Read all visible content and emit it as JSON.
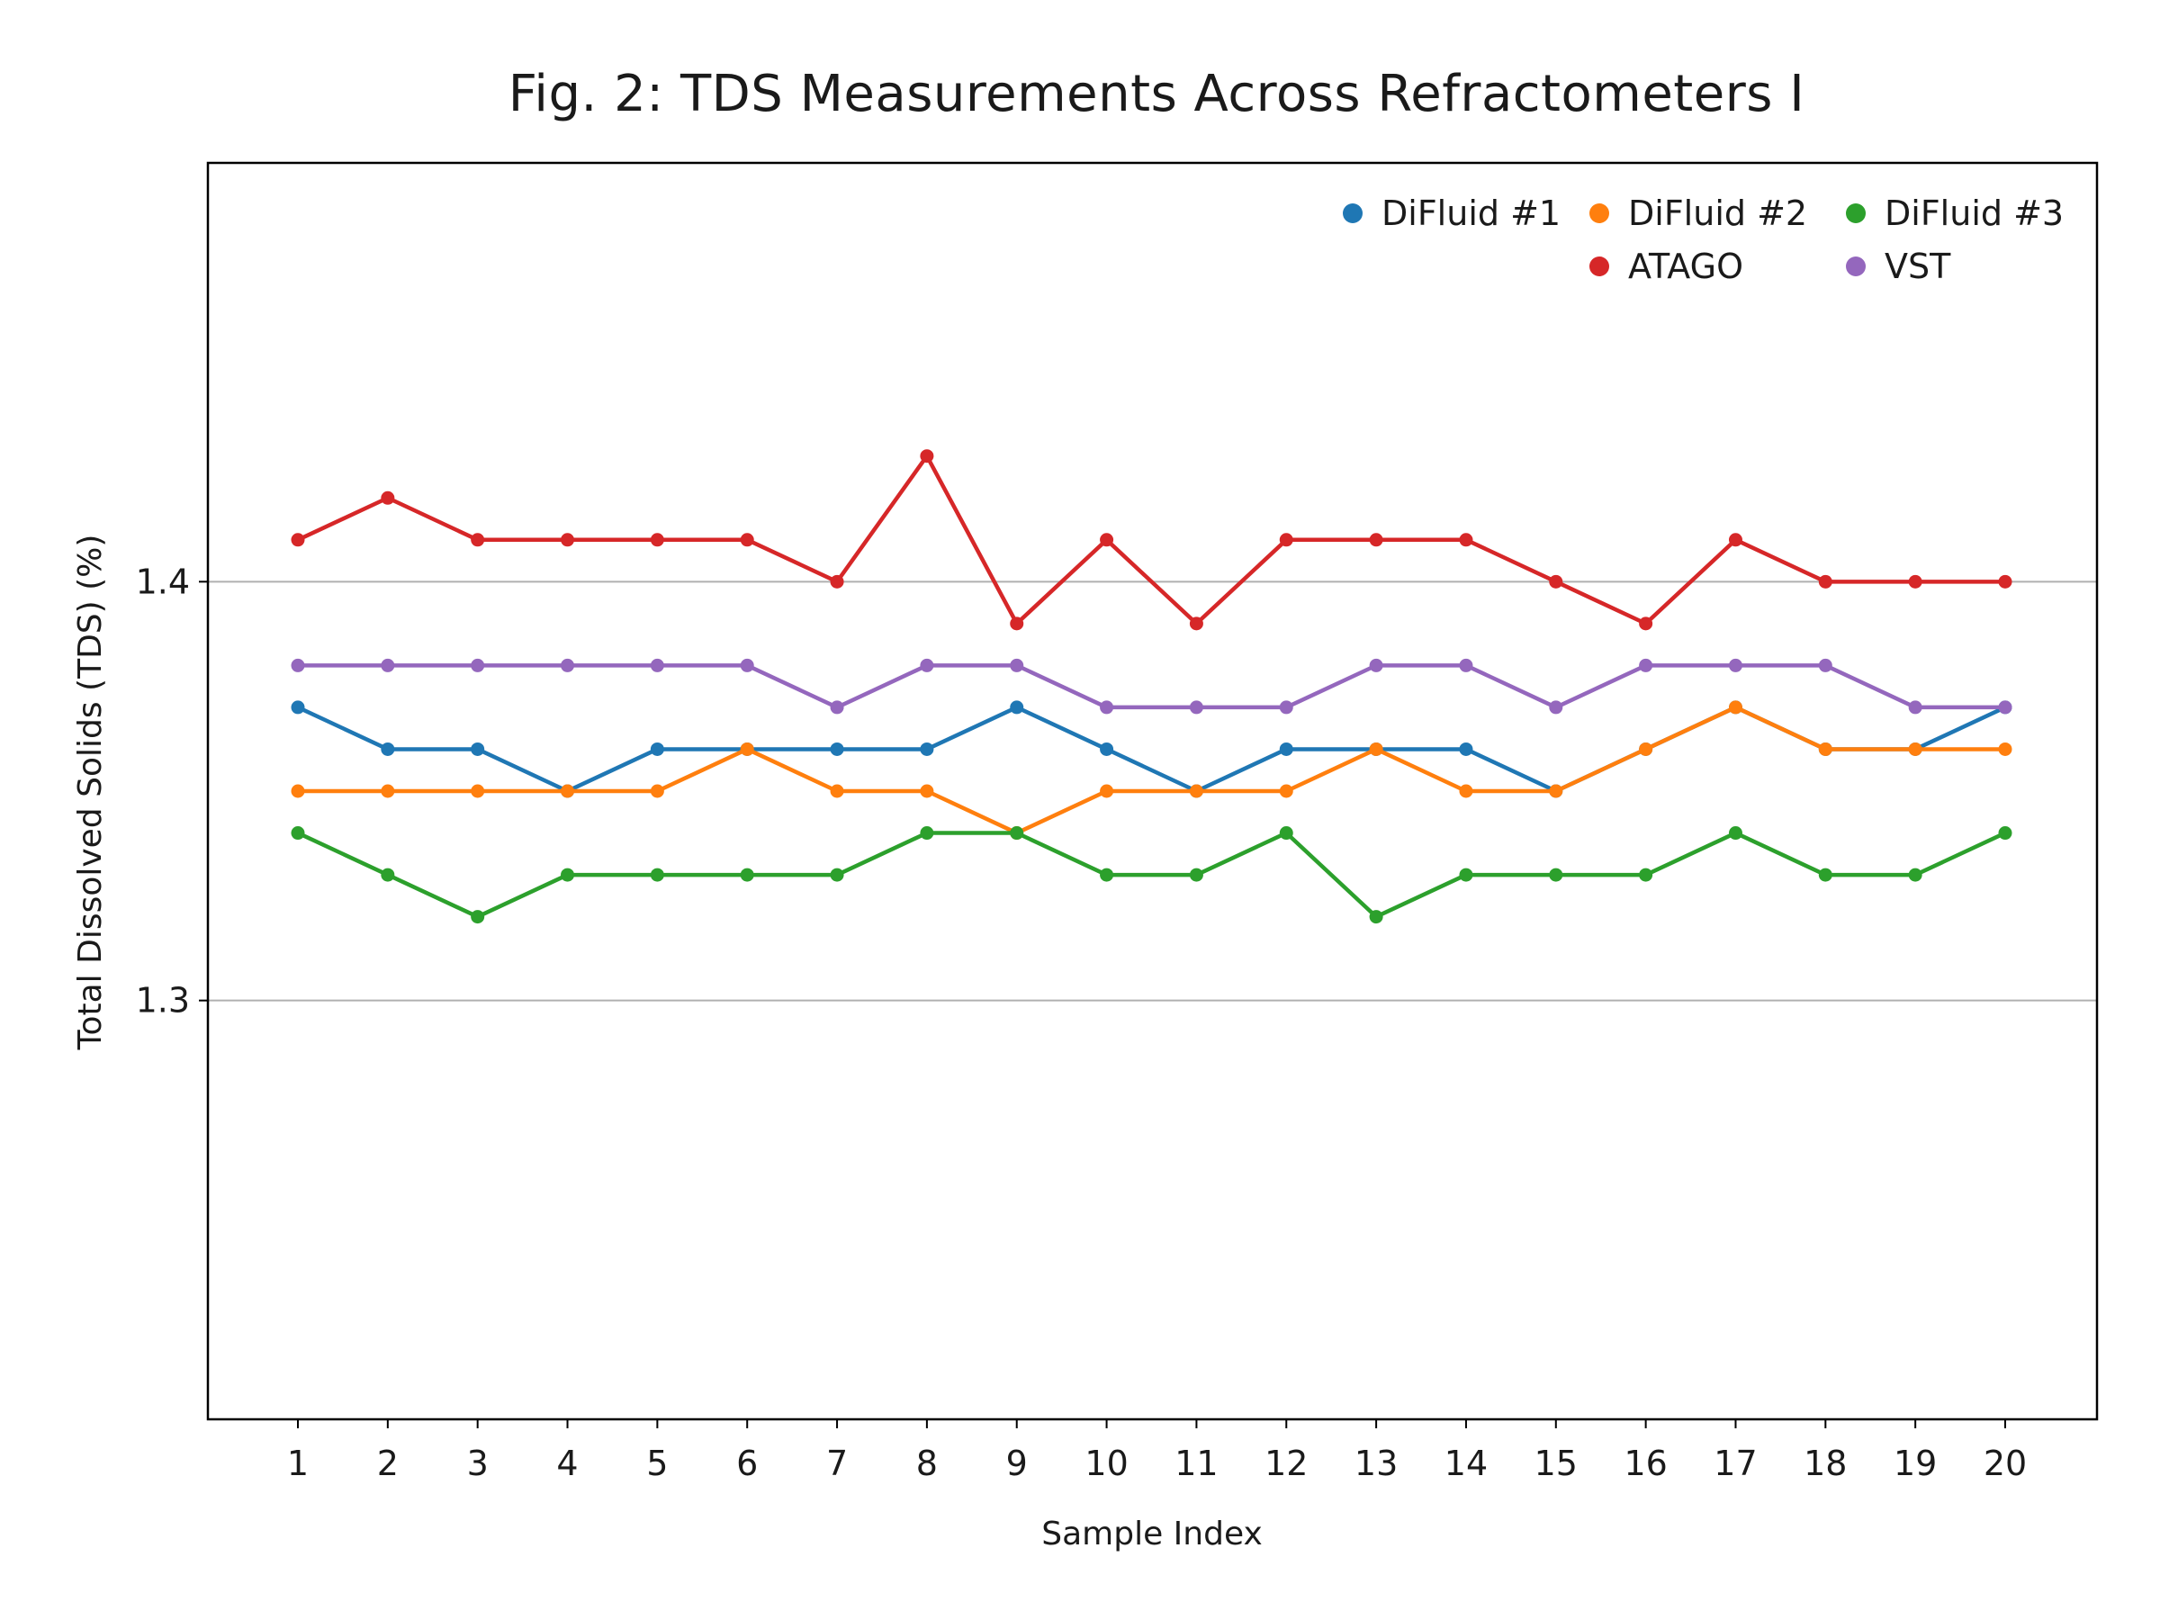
{
  "chart_data": {
    "type": "line",
    "title": "Fig. 2: TDS Measurements Across Refractometers I",
    "xlabel": "Sample Index",
    "ylabel": "Total Dissolved Solids (TDS) (%)",
    "x": [
      1,
      2,
      3,
      4,
      5,
      6,
      7,
      8,
      9,
      10,
      11,
      12,
      13,
      14,
      15,
      16,
      17,
      18,
      19,
      20
    ],
    "x_tick_labels": [
      "1",
      "2",
      "3",
      "4",
      "5",
      "6",
      "7",
      "8",
      "9",
      "10",
      "11",
      "12",
      "13",
      "14",
      "15",
      "16",
      "17",
      "18",
      "19",
      "20"
    ],
    "y_ticks": [
      1.3,
      1.4
    ],
    "y_tick_labels": [
      "1.3",
      "1.4"
    ],
    "ylim": [
      1.2,
      1.5
    ],
    "grid": "horizontal",
    "legend_position": "top-right",
    "series": [
      {
        "name": "DiFluid #1",
        "color": "#1f77b4",
        "values": [
          1.37,
          1.36,
          1.36,
          1.35,
          1.36,
          1.36,
          1.36,
          1.36,
          1.37,
          1.36,
          1.35,
          1.36,
          1.36,
          1.36,
          1.35,
          1.36,
          1.37,
          1.36,
          1.36,
          1.37
        ]
      },
      {
        "name": "DiFluid #2",
        "color": "#ff7f0e",
        "values": [
          1.35,
          1.35,
          1.35,
          1.35,
          1.35,
          1.36,
          1.35,
          1.35,
          1.34,
          1.35,
          1.35,
          1.35,
          1.36,
          1.35,
          1.35,
          1.36,
          1.37,
          1.36,
          1.36,
          1.36
        ]
      },
      {
        "name": "DiFluid #3",
        "color": "#2ca02c",
        "values": [
          1.34,
          1.33,
          1.32,
          1.33,
          1.33,
          1.33,
          1.33,
          1.34,
          1.34,
          1.33,
          1.33,
          1.34,
          1.32,
          1.33,
          1.33,
          1.33,
          1.34,
          1.33,
          1.33,
          1.34
        ]
      },
      {
        "name": "ATAGO",
        "color": "#d62728",
        "values": [
          1.41,
          1.42,
          1.41,
          1.41,
          1.41,
          1.41,
          1.4,
          1.43,
          1.39,
          1.41,
          1.39,
          1.41,
          1.41,
          1.41,
          1.4,
          1.39,
          1.41,
          1.4,
          1.4,
          1.4
        ]
      },
      {
        "name": "VST",
        "color": "#9467bd",
        "values": [
          1.38,
          1.38,
          1.38,
          1.38,
          1.38,
          1.38,
          1.37,
          1.38,
          1.38,
          1.37,
          1.37,
          1.37,
          1.38,
          1.38,
          1.37,
          1.38,
          1.38,
          1.38,
          1.37,
          1.37
        ]
      }
    ]
  }
}
